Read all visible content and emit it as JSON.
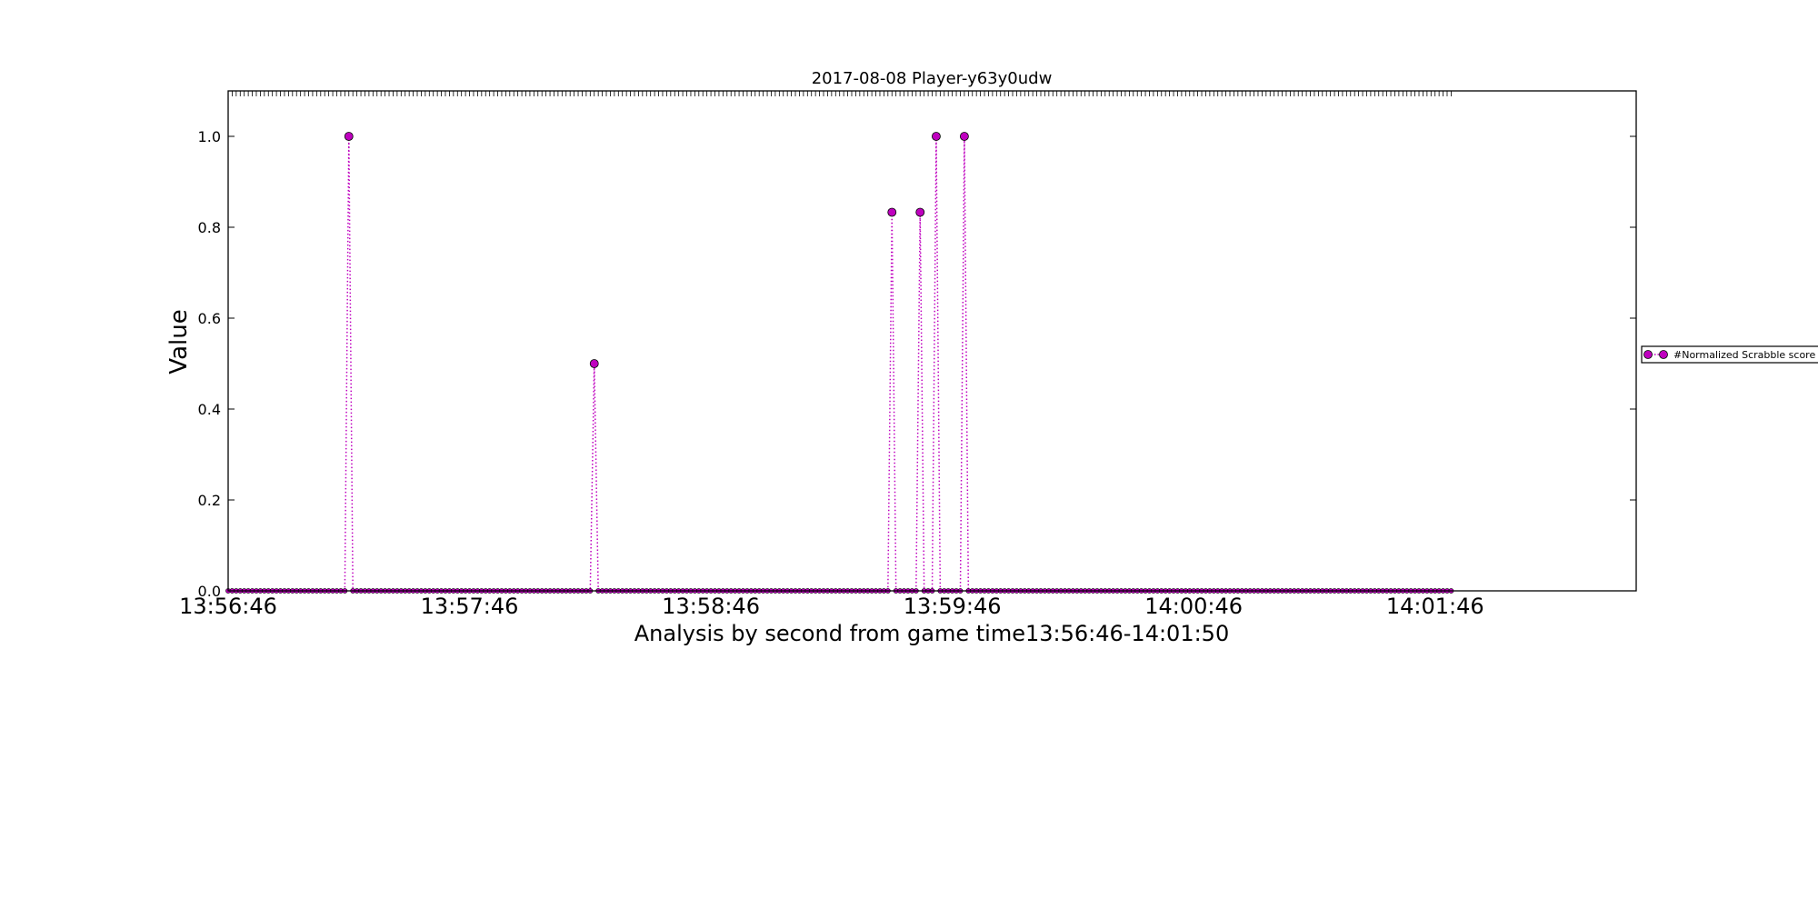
{
  "chart_data": {
    "type": "scatter",
    "title": "2017-08-08 Player-y63y0udw",
    "xlabel": "Analysis by second from game time13:56:46-14:01:50",
    "ylabel": "Value",
    "x_start": "13:56:46",
    "x_end": "14:01:50",
    "xlim": [
      "13:56:46",
      "14:02:36"
    ],
    "ylim": [
      0,
      1.1
    ],
    "x_ticks": [
      "13:56:46",
      "13:57:46",
      "13:58:46",
      "13:59:46",
      "14:00:46",
      "14:01:46"
    ],
    "y_ticks": [
      "0.0",
      "0.2",
      "0.4",
      "0.6",
      "0.8",
      "1.0"
    ],
    "grid": false,
    "legend_position": "right",
    "series": [
      {
        "name": "#Normalized Scrabble score",
        "color": "#bf00bf",
        "marker": "circle",
        "line_style": "dotted",
        "baseline_value": 0.0,
        "points": [
          {
            "x": "13:57:16",
            "y": 1.0
          },
          {
            "x": "13:58:17",
            "y": 0.5
          },
          {
            "x": "13:59:31",
            "y": 0.833
          },
          {
            "x": "13:59:38",
            "y": 0.833
          },
          {
            "x": "13:59:42",
            "y": 1.0
          },
          {
            "x": "13:59:49",
            "y": 1.0
          }
        ]
      }
    ]
  }
}
